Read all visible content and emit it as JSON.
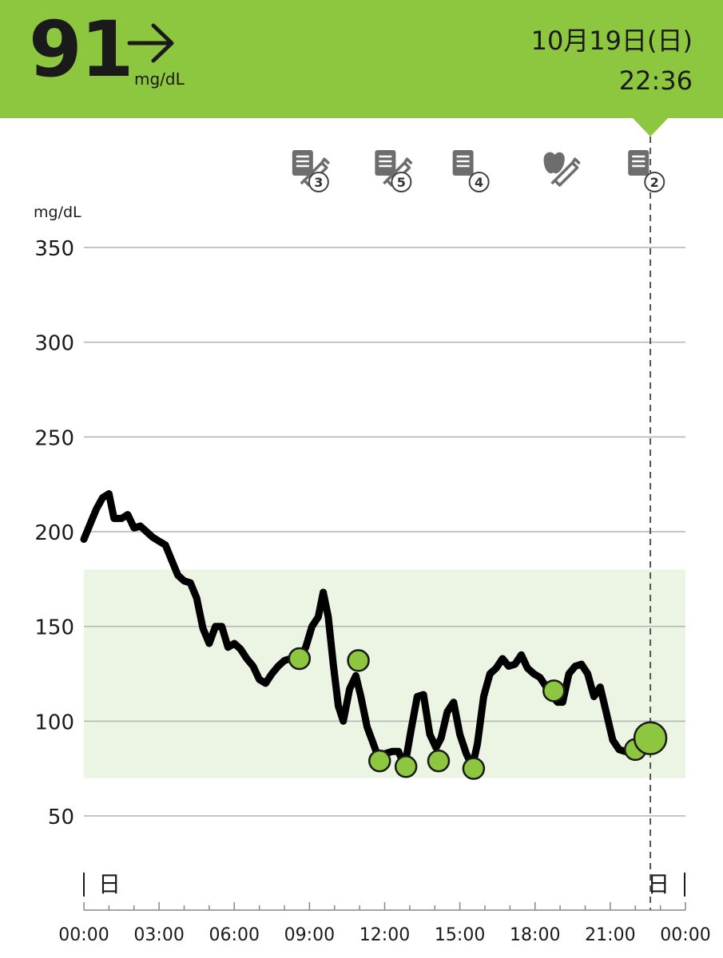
{
  "header": {
    "glucose_value": "91",
    "glucose_unit": "mg/dL",
    "trend_icon": "arrow-right-icon",
    "date": "10月19日(日)",
    "time": "22:36",
    "accent_color": "#8dc63f"
  },
  "event_icons": [
    {
      "name": "note-insulin-icon",
      "badge": "3",
      "time_hours": 8.6
    },
    {
      "name": "note-insulin-icon",
      "badge": "5",
      "time_hours": 11.9
    },
    {
      "name": "note-icon",
      "badge": "4",
      "time_hours": 15.0
    },
    {
      "name": "food-insulin-icon",
      "badge": "",
      "time_hours": 18.6
    },
    {
      "name": "note-icon",
      "badge": "2",
      "time_hours": 22.0
    }
  ],
  "chart_data": {
    "type": "line",
    "ylabel": "mg/dL",
    "ylim": [
      20,
      370
    ],
    "xlim": [
      0,
      24
    ],
    "y_ticks": [
      350,
      300,
      250,
      200,
      150,
      100,
      50
    ],
    "x_ticks": [
      {
        "label": "00:00",
        "hour": 0
      },
      {
        "label": "03:00",
        "hour": 3
      },
      {
        "label": "06:00",
        "hour": 6
      },
      {
        "label": "09:00",
        "hour": 9
      },
      {
        "label": "12:00",
        "hour": 12
      },
      {
        "label": "15:00",
        "hour": 15
      },
      {
        "label": "18:00",
        "hour": 18
      },
      {
        "label": "21:00",
        "hour": 21
      },
      {
        "label": "00:00",
        "hour": 24
      }
    ],
    "target_range": [
      70,
      180
    ],
    "grid": true,
    "day_markers": [
      {
        "label": "日",
        "hour": 0,
        "side": "right"
      },
      {
        "label": "日",
        "hour": 22.6,
        "side": "left"
      }
    ],
    "current_time_hours": 22.6,
    "series": [
      {
        "x": [
          0,
          0.25,
          0.5,
          0.75,
          1.0,
          1.2,
          1.5,
          1.75,
          2.0,
          2.25,
          2.5,
          2.75,
          3.0,
          3.25,
          3.5,
          3.75,
          4.0,
          4.25,
          4.5,
          4.75,
          5.0,
          5.25,
          5.5,
          5.75,
          6.0,
          6.25,
          6.5,
          6.75,
          7.0,
          7.25,
          7.5,
          7.75,
          8.0,
          8.25,
          8.6,
          8.85,
          9.1,
          9.35,
          9.55,
          9.75,
          9.95,
          10.15,
          10.35,
          10.6,
          10.85,
          11.05,
          11.3,
          11.55,
          11.8,
          12.05,
          12.3,
          12.55,
          12.8,
          13.05,
          13.3,
          13.55,
          13.8,
          14.05,
          14.25,
          14.5,
          14.75,
          15.0,
          15.25,
          15.5,
          15.7,
          15.95,
          16.2,
          16.45,
          16.7,
          16.95,
          17.2,
          17.45,
          17.7,
          17.95,
          18.2,
          18.45,
          18.7,
          18.9,
          19.1,
          19.35,
          19.6,
          19.85,
          20.1,
          20.35,
          20.6,
          20.85,
          21.1,
          21.35,
          21.6,
          21.85,
          22.1,
          22.35,
          22.6
        ],
        "y": [
          196,
          204,
          212,
          218,
          220,
          207,
          207,
          209,
          202,
          203,
          200,
          197,
          195,
          193,
          185,
          177,
          174,
          173,
          165,
          149,
          141,
          150,
          150,
          139,
          141,
          138,
          133,
          129,
          122,
          120,
          125,
          129,
          132,
          133,
          133,
          139,
          150,
          155,
          168,
          155,
          130,
          108,
          100,
          117,
          124,
          113,
          97,
          88,
          79,
          83,
          84,
          84,
          76,
          95,
          113,
          114,
          93,
          86,
          91,
          105,
          110,
          93,
          83,
          76,
          88,
          113,
          125,
          128,
          133,
          129,
          130,
          135,
          128,
          125,
          123,
          118,
          113,
          110,
          110,
          125,
          129,
          130,
          125,
          113,
          118,
          104,
          90,
          85,
          84,
          84,
          85,
          88,
          91
        ]
      }
    ],
    "points": [
      {
        "x": 8.6,
        "y": 133
      },
      {
        "x": 10.95,
        "y": 132
      },
      {
        "x": 11.8,
        "y": 79
      },
      {
        "x": 12.85,
        "y": 76
      },
      {
        "x": 14.15,
        "y": 79
      },
      {
        "x": 15.55,
        "y": 75
      },
      {
        "x": 18.75,
        "y": 116
      },
      {
        "x": 22.0,
        "y": 85
      }
    ],
    "current_point": {
      "x": 22.6,
      "y": 91
    },
    "line_color": "#000000",
    "point_color": "#8dc63f",
    "range_fill_color": "#ecf5e3",
    "grid_color": "#b3b3b3"
  }
}
